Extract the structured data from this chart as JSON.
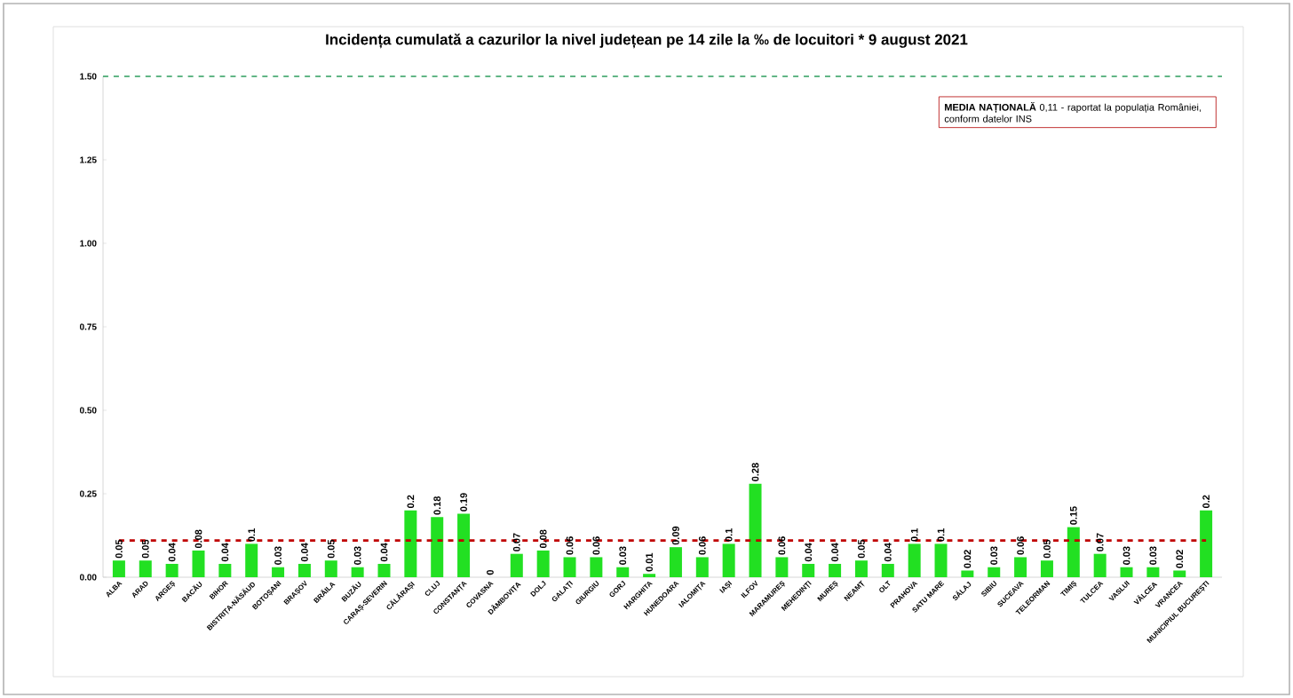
{
  "chart_data": {
    "type": "bar",
    "title": "Incidența cumulată a cazurilor la nivel județean pe 14 zile la ‰ de locuitori *  9 august 2021",
    "categories": [
      "ALBA",
      "ARAD",
      "ARGEȘ",
      "BACĂU",
      "BIHOR",
      "BISTRIȚA-NĂSĂUD",
      "BOTOȘANI",
      "BRAȘOV",
      "BRĂILA",
      "BUZĂU",
      "CARAȘ-SEVERIN",
      "CĂLĂRAȘI",
      "CLUJ",
      "CONSTANȚA",
      "COVASNA",
      "DÂMBOVIȚA",
      "DOLJ",
      "GALAȚI",
      "GIURGIU",
      "GORJ",
      "HARGHITA",
      "HUNEDOARA",
      "IALOMIȚA",
      "IAȘI",
      "ILFOV",
      "MARAMUREȘ",
      "MEHEDINȚI",
      "MUREȘ",
      "NEAMȚ",
      "OLT",
      "PRAHOVA",
      "SATU MARE",
      "SĂLAJ",
      "SIBIU",
      "SUCEAVA",
      "TELEORMAN",
      "TIMIȘ",
      "TULCEA",
      "VASLUI",
      "VÂLCEA",
      "VRANCEA",
      "MUNICIPIUL BUCUREȘTI"
    ],
    "values": [
      0.05,
      0.05,
      0.04,
      0.08,
      0.04,
      0.1,
      0.03,
      0.04,
      0.05,
      0.03,
      0.04,
      0.2,
      0.18,
      0.19,
      0,
      0.07,
      0.08,
      0.06,
      0.06,
      0.03,
      0.01,
      0.09,
      0.06,
      0.1,
      0.28,
      0.06,
      0.04,
      0.04,
      0.05,
      0.04,
      0.1,
      0.1,
      0.02,
      0.03,
      0.06,
      0.05,
      0.15,
      0.07,
      0.03,
      0.03,
      0.02,
      0.2
    ],
    "color": "#22e022",
    "data_labels": true,
    "ylim": [
      0,
      1.5
    ],
    "yticks": [
      {
        "value": 0,
        "label": "0.00"
      },
      {
        "value": 0.25,
        "label": "0.25"
      },
      {
        "value": 0.5,
        "label": "0.50"
      },
      {
        "value": 0.75,
        "label": "0.75"
      },
      {
        "value": 1,
        "label": "1.00"
      },
      {
        "value": 1.25,
        "label": "1.25"
      },
      {
        "value": 1.5,
        "label": "1.50"
      }
    ],
    "ref_lines": [
      {
        "axis": "y",
        "value": 0.11,
        "color": "#c00000",
        "line_style": "dashed"
      },
      {
        "axis": "y",
        "value": 1.5,
        "color": "#2e9e5e",
        "line_style": "dashed"
      }
    ],
    "annotations": [
      "**MEDIA NAȚIONALĂ** 0,11 - raportat la populația României, conform datelor INS"
    ],
    "grid": false
  }
}
